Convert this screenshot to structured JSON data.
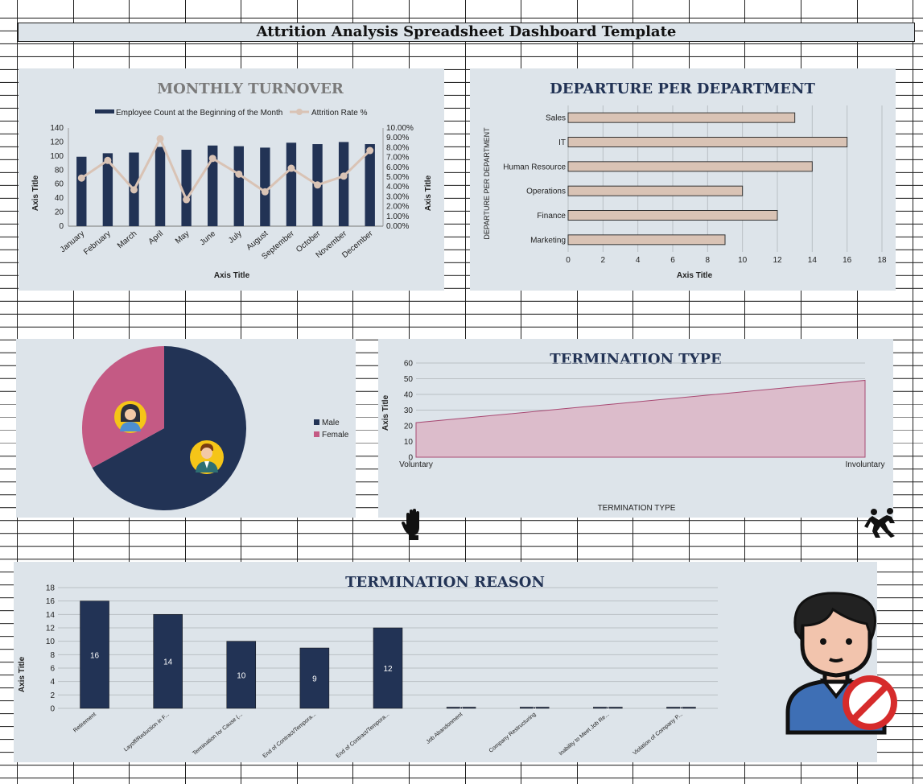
{
  "dashboard": {
    "title": "Attrition Analysis Spreadsheet Dashboard Template"
  },
  "colors": {
    "navy": "#223355",
    "beige": "#d9c3b5",
    "pink": "#c45a84",
    "area_fill": "#dcbccb",
    "area_line": "#a84a73",
    "panel": "#dde4ea"
  },
  "icons": [
    "raised-hand-icon",
    "people-scuffle-icon",
    "user-blocked-icon",
    "female-avatar-icon",
    "male-avatar-icon"
  ],
  "chart_data": [
    {
      "id": "monthly_turnover",
      "type": "bar",
      "title": "MONTHLY TURNOVER",
      "xlabel": "Axis Title",
      "ylabel": "Axis Title",
      "y2label": "Axis Title",
      "categories": [
        "January",
        "February",
        "March",
        "April",
        "May",
        "June",
        "July",
        "August",
        "September",
        "October",
        "November",
        "December"
      ],
      "series": [
        {
          "name": "Employee Count at the Beginning of the Month",
          "type": "bar",
          "axis": "left",
          "values": [
            99,
            104,
            105,
            113,
            109,
            115,
            114,
            112,
            119,
            117,
            120,
            117
          ]
        },
        {
          "name": "Attrition Rate %",
          "type": "line",
          "axis": "right",
          "values": [
            4.9,
            6.7,
            3.7,
            8.9,
            2.7,
            6.9,
            5.3,
            3.5,
            5.9,
            4.2,
            5.1,
            7.7
          ]
        }
      ],
      "ylim": [
        0,
        140
      ],
      "yticks": [
        0,
        20,
        40,
        60,
        80,
        100,
        120,
        140
      ],
      "y2lim": [
        0,
        10
      ],
      "y2ticks": [
        "0.00%",
        "1.00%",
        "2.00%",
        "3.00%",
        "4.00%",
        "5.00%",
        "6.00%",
        "7.00%",
        "8.00%",
        "9.00%",
        "10.00%"
      ],
      "legend": "top",
      "grid": false
    },
    {
      "id": "departure_per_department",
      "type": "bar",
      "orientation": "horizontal",
      "title": "DEPARTURE PER DEPARTMENT",
      "xlabel": "Axis Title",
      "ylabel": "DEPARTURE PER DEPARTMENT",
      "categories": [
        "Sales",
        "IT",
        "Human Resource",
        "Operations",
        "Finance",
        "Marketing"
      ],
      "values": [
        13,
        16,
        14,
        10,
        12,
        9
      ],
      "xlim": [
        0,
        18
      ],
      "xticks": [
        0,
        2,
        4,
        6,
        8,
        10,
        12,
        14,
        16,
        18
      ],
      "grid": true
    },
    {
      "id": "gender_split",
      "type": "pie",
      "categories": [
        "Male",
        "Female"
      ],
      "values": [
        67,
        33
      ],
      "legend": "right"
    },
    {
      "id": "termination_type",
      "type": "area",
      "title": "TERMINATION TYPE",
      "xlabel": "TERMINATION TYPE",
      "ylabel": "Axis Title",
      "categories": [
        "Voluntary",
        "Involuntary"
      ],
      "values": [
        22,
        49
      ],
      "ylim": [
        0,
        60
      ],
      "yticks": [
        0,
        10,
        20,
        30,
        40,
        50,
        60
      ],
      "grid": true
    },
    {
      "id": "termination_reason",
      "type": "bar",
      "title": "TERMINATION REASON",
      "ylabel": "Axis Title",
      "categories": [
        "Retirement",
        "Layoff/Reduction in F...",
        "Termination for Cause (...",
        "End of Contract/Tempora...",
        "End of Contract/Tempora...",
        "Job Abandonment",
        "Company Restructuring",
        "Inability to Meet Job Re...",
        "Violation of Company P..."
      ],
      "values": [
        16,
        14,
        10,
        9,
        12,
        0,
        0,
        0,
        0
      ],
      "data_labels": [
        "16",
        "14",
        "10",
        "9",
        "12",
        "0",
        "0",
        "0",
        "0"
      ],
      "ylim": [
        0,
        18
      ],
      "yticks": [
        0,
        2,
        4,
        6,
        8,
        10,
        12,
        14,
        16,
        18
      ],
      "grid": true
    }
  ]
}
